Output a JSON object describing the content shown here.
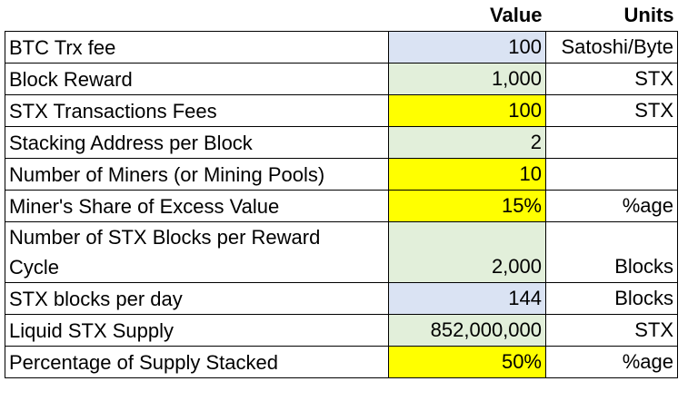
{
  "table": {
    "header": [
      "Value",
      "Units"
    ],
    "rows": [
      {
        "label": "BTC Trx fee",
        "value": "100",
        "unit": "Satoshi/Byte",
        "fill": "#dae3f3"
      },
      {
        "label": "Block Reward",
        "value": "1,000",
        "unit": "STX",
        "fill": "#e2efda"
      },
      {
        "label": "STX Transactions Fees",
        "value": "100",
        "unit": "STX",
        "fill": "#ffff00"
      },
      {
        "label": "Stacking Address per Block",
        "value": "2",
        "fill": "#e2efda"
      },
      {
        "label": "Number of Miners (or Mining Pools)",
        "value": "10",
        "fill": "#ffff00"
      },
      {
        "label": "Miner's Share of Excess Value",
        "value": "15%",
        "unit": "%age",
        "fill": "#ffff00"
      },
      {
        "label": "Number of STX Blocks per Reward Cycle",
        "value": "2,000",
        "unit": "Blocks",
        "fill": "#e2efda"
      },
      {
        "label": "STX blocks per day",
        "value": "144",
        "unit": "Blocks",
        "fill": "#dae3f3"
      },
      {
        "label": "Liquid STX Supply",
        "value": "852,000,000",
        "unit": "STX",
        "fill": "#e2efda"
      },
      {
        "label": "Percentage of Supply Stacked",
        "value": "50%",
        "unit": "%age",
        "fill": "#ffff00"
      }
    ]
  }
}
